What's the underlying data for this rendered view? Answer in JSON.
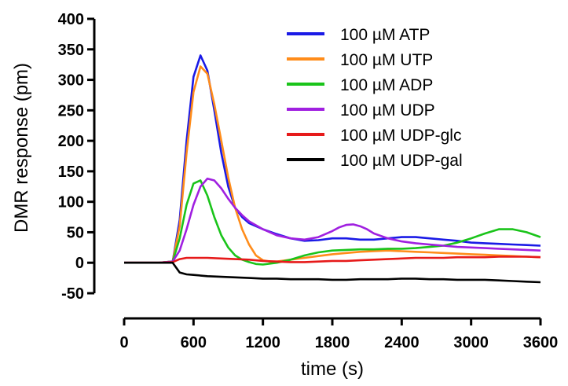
{
  "chart_data": {
    "type": "line",
    "title": "",
    "xlabel": "time (s)",
    "ylabel": "DMR response (pm)",
    "xlim": [
      0,
      3600
    ],
    "ylim": [
      -50,
      400
    ],
    "x_ticks": [
      0,
      600,
      1200,
      1800,
      2400,
      3000,
      3600
    ],
    "y_ticks": [
      -50,
      0,
      50,
      100,
      150,
      200,
      250,
      300,
      350,
      400
    ],
    "x_tick_labels": [
      "0",
      "600",
      "1200",
      "1800",
      "2400",
      "3000",
      "3600"
    ],
    "y_tick_labels": [
      "-50",
      "0",
      "50",
      "100",
      "150",
      "200",
      "250",
      "300",
      "350",
      "400"
    ],
    "legend_position": "top-right",
    "grid": false,
    "series": [
      {
        "name": "100 µM ATP",
        "color": "#1a1ae6",
        "x": [
          0,
          300,
          420,
          480,
          540,
          600,
          660,
          720,
          780,
          840,
          900,
          960,
          1020,
          1080,
          1200,
          1320,
          1440,
          1560,
          1680,
          1800,
          1920,
          2040,
          2160,
          2280,
          2400,
          2520,
          2640,
          2760,
          2880,
          3000,
          3120,
          3240,
          3360,
          3480,
          3600
        ],
        "y": [
          0,
          0,
          2,
          70,
          200,
          305,
          340,
          315,
          250,
          180,
          125,
          90,
          75,
          65,
          55,
          47,
          40,
          36,
          37,
          40,
          40,
          38,
          38,
          40,
          42,
          42,
          40,
          38,
          36,
          33,
          32,
          31,
          30,
          29,
          28
        ]
      },
      {
        "name": "100 µM UTP",
        "color": "#ff8c1a",
        "x": [
          0,
          300,
          420,
          480,
          540,
          600,
          660,
          720,
          780,
          840,
          900,
          960,
          1020,
          1080,
          1140,
          1200,
          1260,
          1320,
          1440,
          1560,
          1680,
          1800,
          1920,
          2040,
          2160,
          2280,
          2400,
          2520,
          2640,
          2760,
          2880,
          3000,
          3120,
          3240,
          3360,
          3480,
          3600
        ],
        "y": [
          0,
          0,
          2,
          60,
          180,
          280,
          322,
          310,
          260,
          200,
          140,
          90,
          55,
          30,
          12,
          4,
          2,
          2,
          5,
          8,
          11,
          14,
          16,
          18,
          19,
          20,
          19,
          18,
          17,
          16,
          15,
          14,
          13,
          12,
          11,
          10,
          9
        ]
      },
      {
        "name": "100 µM ADP",
        "color": "#1ac41a",
        "x": [
          0,
          300,
          420,
          480,
          540,
          600,
          660,
          720,
          780,
          840,
          900,
          960,
          1020,
          1080,
          1140,
          1200,
          1320,
          1440,
          1560,
          1680,
          1800,
          1920,
          2040,
          2160,
          2280,
          2400,
          2520,
          2640,
          2760,
          2880,
          3000,
          3120,
          3240,
          3360,
          3480,
          3600
        ],
        "y": [
          0,
          0,
          2,
          40,
          95,
          130,
          135,
          110,
          75,
          45,
          25,
          12,
          5,
          1,
          -2,
          -3,
          0,
          5,
          12,
          17,
          20,
          21,
          22,
          22,
          23,
          23,
          24,
          26,
          28,
          33,
          40,
          48,
          55,
          55,
          50,
          42
        ]
      },
      {
        "name": "100 µM UDP",
        "color": "#a020e0",
        "x": [
          0,
          300,
          420,
          480,
          540,
          600,
          660,
          720,
          780,
          840,
          900,
          960,
          1020,
          1080,
          1200,
          1320,
          1440,
          1560,
          1680,
          1800,
          1860,
          1920,
          1980,
          2040,
          2100,
          2160,
          2280,
          2400,
          2520,
          2640,
          2760,
          2880,
          3000,
          3120,
          3240,
          3360,
          3480,
          3600
        ],
        "y": [
          0,
          0,
          2,
          20,
          55,
          95,
          125,
          138,
          135,
          122,
          105,
          90,
          78,
          68,
          55,
          45,
          40,
          38,
          42,
          52,
          58,
          62,
          63,
          60,
          55,
          48,
          40,
          35,
          32,
          30,
          28,
          26,
          25,
          24,
          23,
          22,
          21,
          20
        ]
      },
      {
        "name": "100 µM UDP-glc",
        "color": "#e61a1a",
        "x": [
          0,
          300,
          420,
          480,
          540,
          600,
          660,
          720,
          840,
          960,
          1080,
          1200,
          1320,
          1440,
          1560,
          1680,
          1800,
          1920,
          2040,
          2160,
          2280,
          2400,
          2520,
          2640,
          2760,
          2880,
          3000,
          3120,
          3240,
          3360,
          3480,
          3600
        ],
        "y": [
          0,
          0,
          1,
          6,
          8,
          8,
          8,
          8,
          7,
          6,
          5,
          3,
          2,
          1,
          1,
          2,
          3,
          3,
          4,
          5,
          6,
          7,
          8,
          8,
          8,
          9,
          9,
          9,
          10,
          10,
          10,
          9
        ]
      },
      {
        "name": "100 µM UDP-gal",
        "color": "#000000",
        "x": [
          0,
          300,
          420,
          480,
          540,
          600,
          720,
          840,
          960,
          1080,
          1200,
          1320,
          1440,
          1560,
          1680,
          1800,
          1920,
          2040,
          2160,
          2280,
          2400,
          2520,
          2640,
          2760,
          2880,
          3000,
          3120,
          3240,
          3360,
          3480,
          3600
        ],
        "y": [
          0,
          0,
          0,
          -16,
          -19,
          -20,
          -22,
          -23,
          -24,
          -25,
          -26,
          -26,
          -27,
          -27,
          -27,
          -28,
          -28,
          -27,
          -27,
          -27,
          -26,
          -26,
          -27,
          -27,
          -28,
          -28,
          -28,
          -29,
          -30,
          -31,
          -32
        ]
      }
    ]
  }
}
